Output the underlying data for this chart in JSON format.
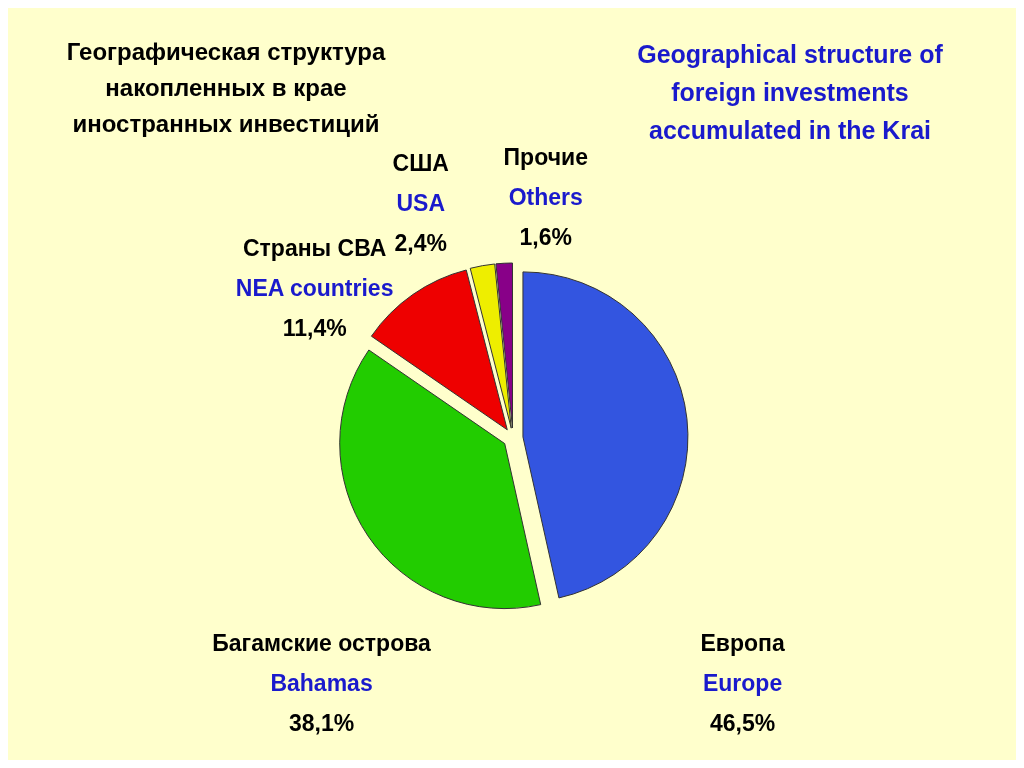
{
  "chart_data": {
    "type": "pie",
    "title": "Географическая структура накопленных в крае иностранных инвестиций",
    "subtitle": "Geographical structure of foreign investments accumulated in the Krai",
    "categories": [
      "Европа\nEurope",
      "Багамские острова\nBahamas",
      "Страны СВА\nNEA countries",
      "США\nUSA",
      "Прочие\nOthers"
    ],
    "values": [
      46.5,
      38.1,
      11.4,
      2.4,
      1.6
    ],
    "colors": [
      "#3355e0",
      "#22cc00",
      "#ee0000",
      "#eeee00",
      "#880088"
    ],
    "value_labels": [
      "46,5%",
      "38,1%",
      "11,4%",
      "2,4%",
      "1,6%"
    ]
  }
}
